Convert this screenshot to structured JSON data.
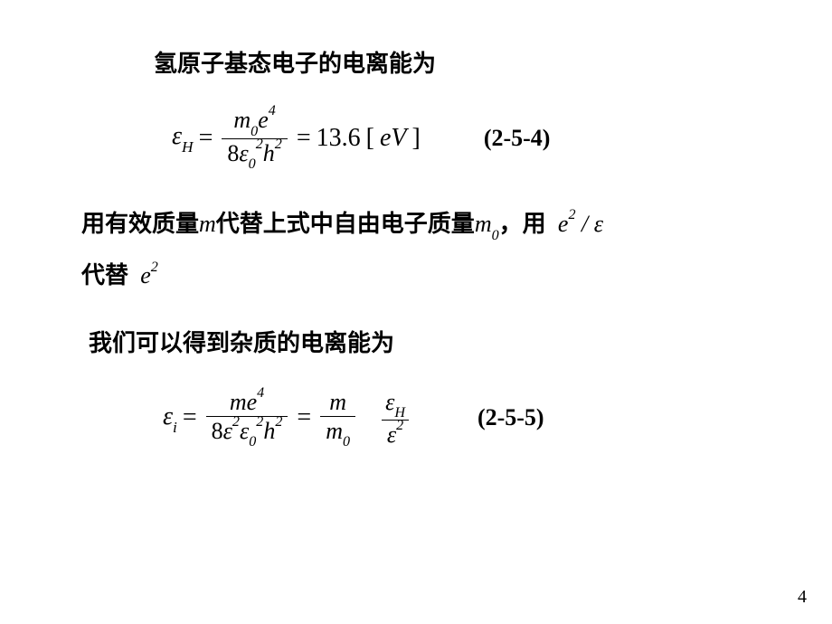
{
  "page": {
    "background_color": "#ffffff",
    "text_color": "#000000",
    "page_number": "4"
  },
  "typography": {
    "heading_fontsize": 26,
    "body_fontsize": 26,
    "equation_fontsize": 28,
    "label_fontsize": 26,
    "pagenum_fontsize": 20,
    "heading_weight": "bold",
    "body_weight": "bold",
    "cjk_font": "SimHei",
    "math_font": "Times New Roman"
  },
  "heading1": "氢原子基态电子的电离能为",
  "eq1": {
    "lhs_symbol": "ε",
    "lhs_sub": "H",
    "numerator_var1": "m",
    "numerator_sub1": "0",
    "numerator_var2": "e",
    "numerator_sup2": "4",
    "denom_coeff": "8",
    "denom_var1": "ε",
    "denom_sub1": "0",
    "denom_sup1": "2",
    "denom_var2": "h",
    "denom_sup2": "2",
    "rhs_value": "13.6",
    "rhs_unit_open": "[",
    "rhs_unit": "eV",
    "rhs_unit_close": "]",
    "label": "(2-5-4)"
  },
  "para1": {
    "t1": "用有效质量",
    "m": "m",
    "t2": "代替上式中自由电子质量",
    "m0": "m",
    "m0_sub": "0",
    "t3": "，用",
    "inline_expr_a": "e",
    "inline_expr_a_sup": "2",
    "inline_slash": " / ",
    "inline_expr_b": "ε",
    "t4": "代替",
    "inline2_a": "e",
    "inline2_a_sup": "2"
  },
  "para2": "我们可以得到杂质的电离能为",
  "eq2": {
    "lhs_symbol": "ε",
    "lhs_sub": "i",
    "f1_num_var1": "m",
    "f1_num_var2": "e",
    "f1_num_sup2": "4",
    "f1_den_coeff": "8",
    "f1_den_var1": "ε",
    "f1_den_sup1": "2",
    "f1_den_var2": "ε",
    "f1_den_sub2": "0",
    "f1_den_sup2": "2",
    "f1_den_var3": "h",
    "f1_den_sup3": "2",
    "f2_num": "m",
    "f2_den_var": "m",
    "f2_den_sub": "0",
    "f3_num_var": "ε",
    "f3_num_sub": "H",
    "f3_den_var": "ε",
    "f3_den_sup": "2",
    "label": "(2-5-5)"
  }
}
